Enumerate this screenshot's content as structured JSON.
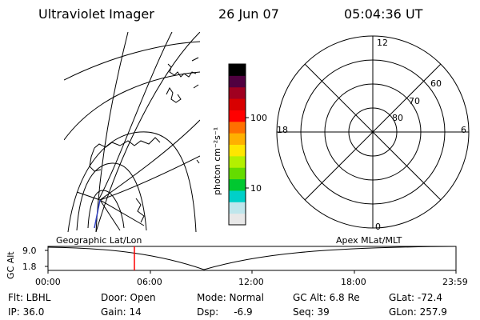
{
  "header": {
    "instrument": "Ultraviolet Imager",
    "date": "26 Jun 07",
    "time": "05:04:36 UT"
  },
  "left_map": {
    "projection_label": "Geographic Lat/Lon"
  },
  "right_map": {
    "projection_label": "Apex MLat/MLT",
    "mlt_labels": [
      "12",
      "18",
      "6",
      "0"
    ],
    "mlat_labels": [
      "60",
      "70",
      "80"
    ]
  },
  "colorbar": {
    "unit_label": "photon cm⁻²s⁻¹",
    "tick_labels": [
      "100",
      "10"
    ],
    "colors": [
      "#e8e8e8",
      "#bfe6ec",
      "#00d0c8",
      "#00c830",
      "#64dc00",
      "#b4f000",
      "#ffe600",
      "#ffb000",
      "#ff7000",
      "#ff0000",
      "#d80000",
      "#a00020",
      "#500040",
      "#000000"
    ]
  },
  "altitude_plot": {
    "ylabel": "GC Alt",
    "y_ticks": [
      "9.0",
      "1.8"
    ],
    "x_ticks": [
      "00:00",
      "06:00",
      "12:00",
      "18:00",
      "23:59"
    ],
    "current_time_marker_color": "#ff0000"
  },
  "status": {
    "flt": "Flt: LBHL",
    "ip": "IP: 36.0",
    "door": "Door: Open",
    "gain": "Gain: 14",
    "mode": "Mode: Normal",
    "dsp": "Dsp:     -6.9",
    "gc_alt": "GC Alt: 6.8 Re",
    "seq": "Seq: 39",
    "glat": "GLat: -72.4",
    "glon": "GLon: 257.9"
  }
}
